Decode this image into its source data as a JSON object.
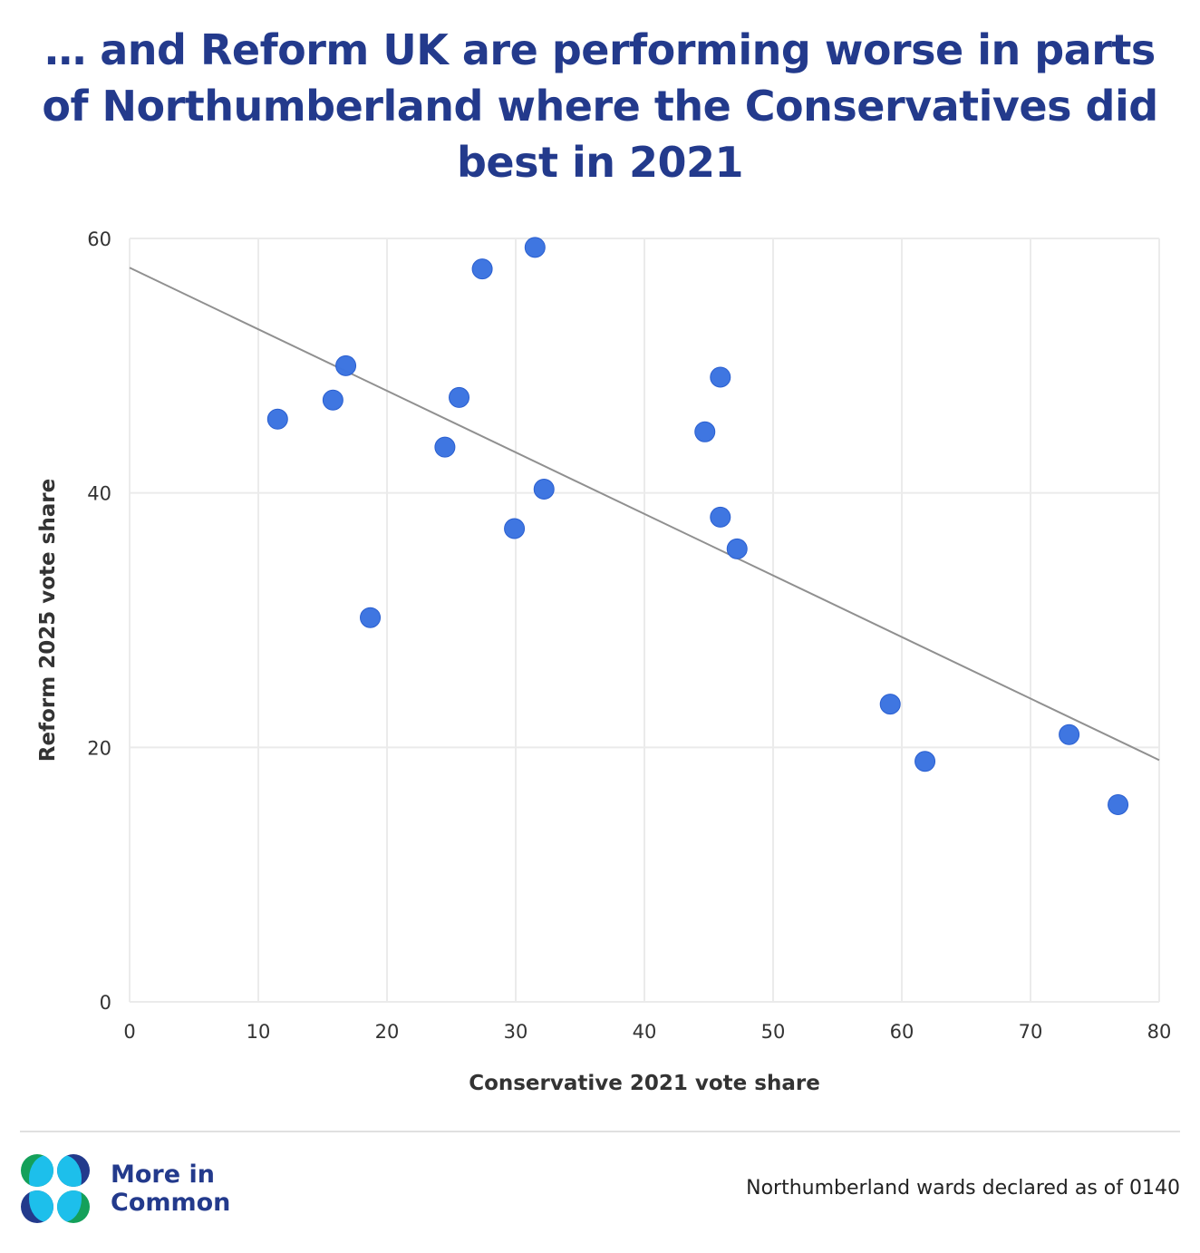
{
  "title": "… and Reform UK are performing worse in parts of Northumberland where the Conservatives did best in 2021",
  "footer": {
    "brand_line1": "More in",
    "brand_line2": "Common",
    "note": "Northumberland wards declared as of 0140"
  },
  "colors": {
    "title": "#233a8c",
    "point": "#3b73e0",
    "trendline": "#909090",
    "grid": "#ebebeb",
    "logo_green": "#14a05a",
    "logo_navy": "#233a8c",
    "logo_cyan": "#1dbfeb"
  },
  "chart_data": {
    "type": "scatter",
    "title": "… and Reform UK are performing worse in parts of Northumberland where the Conservatives did best in 2021",
    "xlabel": "Conservative 2021 vote share",
    "ylabel": "Reform 2025 vote share",
    "xlim": [
      0,
      80
    ],
    "ylim": [
      0,
      60
    ],
    "xticks": [
      0,
      10,
      20,
      30,
      40,
      50,
      60,
      70,
      80
    ],
    "yticks": [
      0,
      20,
      40,
      60
    ],
    "grid": true,
    "legend": "none",
    "points": [
      {
        "x": 11.5,
        "y": 45.8
      },
      {
        "x": 15.8,
        "y": 47.3
      },
      {
        "x": 16.8,
        "y": 50.0
      },
      {
        "x": 18.7,
        "y": 30.2
      },
      {
        "x": 24.5,
        "y": 43.6
      },
      {
        "x": 25.6,
        "y": 47.5
      },
      {
        "x": 27.4,
        "y": 57.6
      },
      {
        "x": 29.9,
        "y": 37.2
      },
      {
        "x": 31.5,
        "y": 59.3
      },
      {
        "x": 32.2,
        "y": 40.3
      },
      {
        "x": 44.7,
        "y": 44.8
      },
      {
        "x": 45.9,
        "y": 49.1
      },
      {
        "x": 45.9,
        "y": 38.1
      },
      {
        "x": 47.2,
        "y": 35.6
      },
      {
        "x": 59.1,
        "y": 23.4
      },
      {
        "x": 61.8,
        "y": 18.9
      },
      {
        "x": 73.0,
        "y": 21.0
      },
      {
        "x": 76.8,
        "y": 15.5
      }
    ],
    "trendline": {
      "x": [
        0,
        80
      ],
      "y": [
        57.7,
        19.0
      ]
    }
  }
}
